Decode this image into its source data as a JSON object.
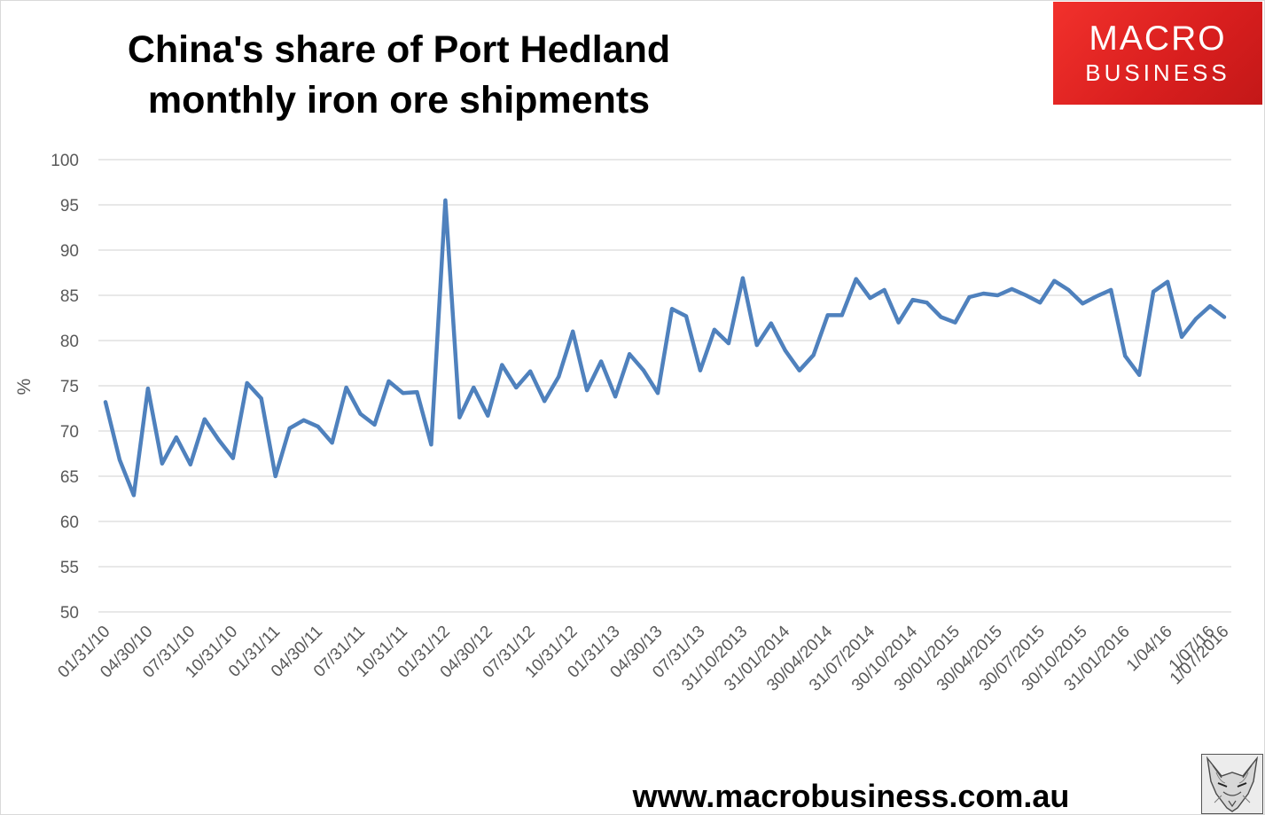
{
  "title_lines": [
    "China's share of Port Hedland",
    "monthly iron ore shipments"
  ],
  "logo": {
    "top": "MACRO",
    "bottom": "BUSINESS"
  },
  "website": "www.macrobusiness.com.au",
  "colors": {
    "line": "#4f81bd",
    "grid": "#d9d9d9",
    "axis_text": "#595959",
    "logo_red": "#e52727"
  },
  "chart_data": {
    "type": "line",
    "ylabel": "%",
    "ylim": [
      50,
      100
    ],
    "y_ticks": [
      50,
      55,
      60,
      65,
      70,
      75,
      80,
      85,
      90,
      95,
      100
    ],
    "grid": true,
    "x_tick_labels": [
      "01/31/10",
      "04/30/10",
      "07/31/10",
      "10/31/10",
      "01/31/11",
      "04/30/11",
      "07/31/11",
      "10/31/11",
      "01/31/12",
      "04/30/12",
      "07/31/12",
      "10/31/12",
      "01/31/13",
      "04/30/13",
      "07/31/13",
      "31/10/2013",
      "31/01/2014",
      "30/04/2014",
      "31/07/2014",
      "30/10/2014",
      "30/01/2015",
      "30/04/2015",
      "30/07/2015",
      "30/10/2015",
      "31/01/2016",
      "1/04/16",
      "1/07/16",
      "1/07/2016"
    ],
    "x": [
      "2010-01",
      "2010-02",
      "2010-03",
      "2010-04",
      "2010-05",
      "2010-06",
      "2010-07",
      "2010-08",
      "2010-09",
      "2010-10",
      "2010-11",
      "2010-12",
      "2011-01",
      "2011-02",
      "2011-03",
      "2011-04",
      "2011-05",
      "2011-06",
      "2011-07",
      "2011-08",
      "2011-09",
      "2011-10",
      "2011-11",
      "2011-12",
      "2012-01",
      "2012-02",
      "2012-03",
      "2012-04",
      "2012-05",
      "2012-06",
      "2012-07",
      "2012-08",
      "2012-09",
      "2012-10",
      "2012-11",
      "2012-12",
      "2013-01",
      "2013-02",
      "2013-03",
      "2013-04",
      "2013-05",
      "2013-06",
      "2013-07",
      "2013-08",
      "2013-09",
      "2013-10",
      "2013-11",
      "2013-12",
      "2014-01",
      "2014-02",
      "2014-03",
      "2014-04",
      "2014-05",
      "2014-06",
      "2014-07",
      "2014-08",
      "2014-09",
      "2014-10",
      "2014-11",
      "2014-12",
      "2015-01",
      "2015-02",
      "2015-03",
      "2015-04",
      "2015-05",
      "2015-06",
      "2015-07",
      "2015-08",
      "2015-09",
      "2015-10",
      "2015-11",
      "2015-12",
      "2016-01",
      "2016-02",
      "2016-03",
      "2016-04",
      "2016-05",
      "2016-06",
      "2016-07",
      "2016-08"
    ],
    "values": [
      73.2,
      66.8,
      62.9,
      74.7,
      66.4,
      69.3,
      66.3,
      71.3,
      69.0,
      67.0,
      75.3,
      73.6,
      65.0,
      70.3,
      71.2,
      70.5,
      68.7,
      74.8,
      71.9,
      70.7,
      75.5,
      74.2,
      74.3,
      68.5,
      95.5,
      71.5,
      74.8,
      71.7,
      77.3,
      74.8,
      76.6,
      73.3,
      76.0,
      81.0,
      74.5,
      77.7,
      73.8,
      78.5,
      76.7,
      74.2,
      83.5,
      82.7,
      76.7,
      81.2,
      79.7,
      86.9,
      79.5,
      81.9,
      78.9,
      76.7,
      78.4,
      82.8,
      82.8,
      86.8,
      84.7,
      85.6,
      82.0,
      84.5,
      84.2,
      82.6,
      82.0,
      84.8,
      85.2,
      85.0,
      85.7,
      85.0,
      84.2,
      86.6,
      85.6,
      84.1,
      84.9,
      85.6,
      78.3,
      76.2,
      85.4,
      86.5,
      80.4,
      82.4,
      83.8,
      82.6
    ]
  }
}
